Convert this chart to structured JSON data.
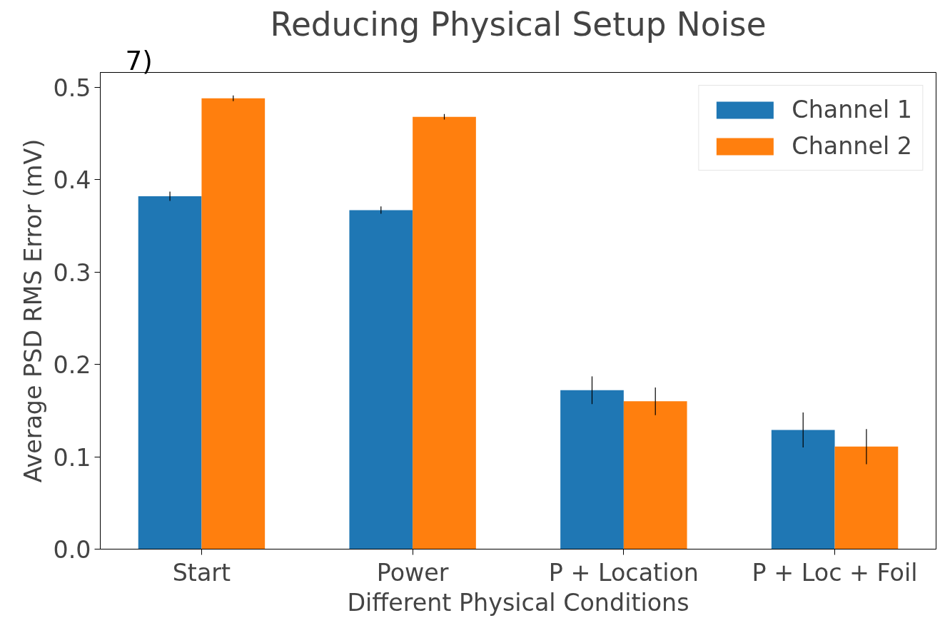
{
  "chart_data": {
    "type": "bar",
    "title": "Reducing Physical Setup Noise",
    "xlabel": "Different Physical Conditions",
    "ylabel": "Average PSD RMS Error (mV)",
    "categories": [
      "Start",
      "Power",
      "P + Location",
      "P + Loc + Foil"
    ],
    "series": [
      {
        "name": "Channel 1",
        "color": "#1f77b4",
        "values": [
          0.382,
          0.367,
          0.172,
          0.129
        ],
        "errors": [
          0.005,
          0.004,
          0.015,
          0.019
        ]
      },
      {
        "name": "Channel 2",
        "color": "#ff7f0e",
        "values": [
          0.488,
          0.468,
          0.16,
          0.111
        ],
        "errors": [
          0.003,
          0.003,
          0.015,
          0.019
        ]
      }
    ],
    "ylim": [
      0,
      0.516
    ],
    "yticks": [
      {
        "value": 0,
        "label": "0.0"
      },
      0.1,
      0.2,
      0.3,
      0.4,
      0.5
    ],
    "legend": "top right",
    "grid": false,
    "annotations": [
      "7)"
    ]
  }
}
